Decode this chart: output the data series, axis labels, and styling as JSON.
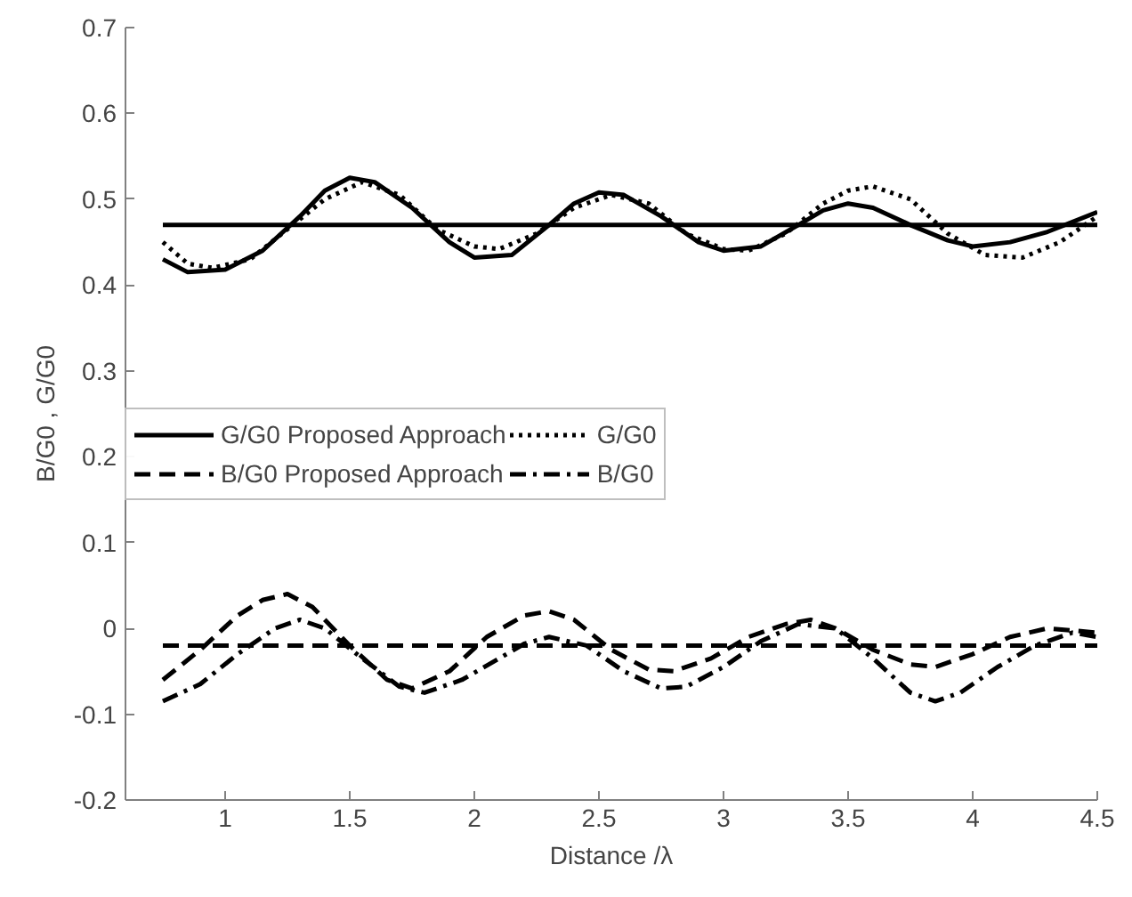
{
  "chart_data": {
    "type": "line",
    "xlabel": "Distance /λ",
    "ylabel": "B/G0 , G/G0",
    "xlim": [
      0.6,
      4.5
    ],
    "ylim": [
      -0.2,
      0.7
    ],
    "xticks": [
      1,
      1.5,
      2,
      2.5,
      3,
      3.5,
      4,
      4.5
    ],
    "yticks": [
      -0.2,
      -0.1,
      0,
      0.1,
      0.2,
      0.3,
      0.4,
      0.5,
      0.6,
      0.7
    ],
    "grid": false,
    "legend": "left",
    "series": [
      {
        "name": "G/G0 Proposed Approach",
        "color": "#000000",
        "line_style": "solid",
        "x": [
          0.75,
          0.85,
          1.0,
          1.15,
          1.3,
          1.4,
          1.5,
          1.6,
          1.75,
          1.9,
          2.0,
          2.15,
          2.3,
          2.4,
          2.5,
          2.6,
          2.75,
          2.9,
          3.0,
          3.15,
          3.3,
          3.4,
          3.5,
          3.6,
          3.75,
          3.9,
          4.0,
          4.15,
          4.3,
          4.5
        ],
        "values": [
          0.43,
          0.415,
          0.418,
          0.44,
          0.48,
          0.51,
          0.525,
          0.52,
          0.49,
          0.45,
          0.432,
          0.435,
          0.47,
          0.495,
          0.508,
          0.505,
          0.48,
          0.45,
          0.44,
          0.445,
          0.47,
          0.487,
          0.495,
          0.49,
          0.47,
          0.452,
          0.445,
          0.45,
          0.462,
          0.485
        ]
      },
      {
        "name": "G/G0",
        "color": "#000000",
        "line_style": "dotted",
        "x": [
          0.75,
          0.85,
          0.95,
          1.1,
          1.25,
          1.4,
          1.55,
          1.7,
          1.85,
          2.0,
          2.1,
          2.25,
          2.4,
          2.55,
          2.7,
          2.85,
          3.0,
          3.1,
          3.25,
          3.4,
          3.5,
          3.6,
          3.75,
          3.9,
          4.05,
          4.2,
          4.35,
          4.5
        ],
        "values": [
          0.45,
          0.425,
          0.42,
          0.43,
          0.465,
          0.5,
          0.52,
          0.505,
          0.465,
          0.445,
          0.442,
          0.46,
          0.49,
          0.505,
          0.495,
          0.46,
          0.442,
          0.44,
          0.46,
          0.495,
          0.51,
          0.515,
          0.5,
          0.46,
          0.435,
          0.432,
          0.45,
          0.48
        ]
      },
      {
        "name": null,
        "color": "#000000",
        "line_style": "solid",
        "x": [
          0.75,
          4.5
        ],
        "values": [
          0.47,
          0.47
        ]
      },
      {
        "name": "B/G0 Proposed Approach",
        "color": "#000000",
        "line_style": "dashed",
        "x": [
          0.75,
          0.9,
          1.05,
          1.15,
          1.25,
          1.35,
          1.5,
          1.65,
          1.75,
          1.9,
          2.05,
          2.2,
          2.3,
          2.4,
          2.55,
          2.7,
          2.8,
          2.95,
          3.1,
          3.25,
          3.35,
          3.45,
          3.6,
          3.75,
          3.85,
          4.0,
          4.15,
          4.3,
          4.5
        ],
        "values": [
          -0.06,
          -0.025,
          0.015,
          0.033,
          0.04,
          0.025,
          -0.02,
          -0.06,
          -0.07,
          -0.05,
          -0.01,
          0.015,
          0.02,
          0.01,
          -0.025,
          -0.048,
          -0.05,
          -0.035,
          -0.01,
          0.005,
          0.01,
          0.0,
          -0.025,
          -0.042,
          -0.045,
          -0.03,
          -0.01,
          0.0,
          -0.005
        ]
      },
      {
        "name": null,
        "color": "#000000",
        "line_style": "dashed",
        "x": [
          0.75,
          4.5
        ],
        "values": [
          -0.02,
          -0.02
        ]
      },
      {
        "name": "B/G0",
        "color": "#000000",
        "line_style": "dashdot",
        "x": [
          0.75,
          0.9,
          1.05,
          1.2,
          1.3,
          1.4,
          1.55,
          1.7,
          1.8,
          1.95,
          2.1,
          2.2,
          2.3,
          2.45,
          2.6,
          2.75,
          2.85,
          3.0,
          3.15,
          3.3,
          3.45,
          3.6,
          3.75,
          3.85,
          3.95,
          4.1,
          4.25,
          4.4,
          4.5
        ],
        "values": [
          -0.085,
          -0.065,
          -0.03,
          0.0,
          0.01,
          0.0,
          -0.035,
          -0.068,
          -0.075,
          -0.06,
          -0.035,
          -0.018,
          -0.01,
          -0.02,
          -0.05,
          -0.07,
          -0.068,
          -0.045,
          -0.015,
          0.005,
          0.0,
          -0.035,
          -0.075,
          -0.085,
          -0.075,
          -0.045,
          -0.02,
          -0.005,
          -0.01
        ]
      }
    ]
  }
}
